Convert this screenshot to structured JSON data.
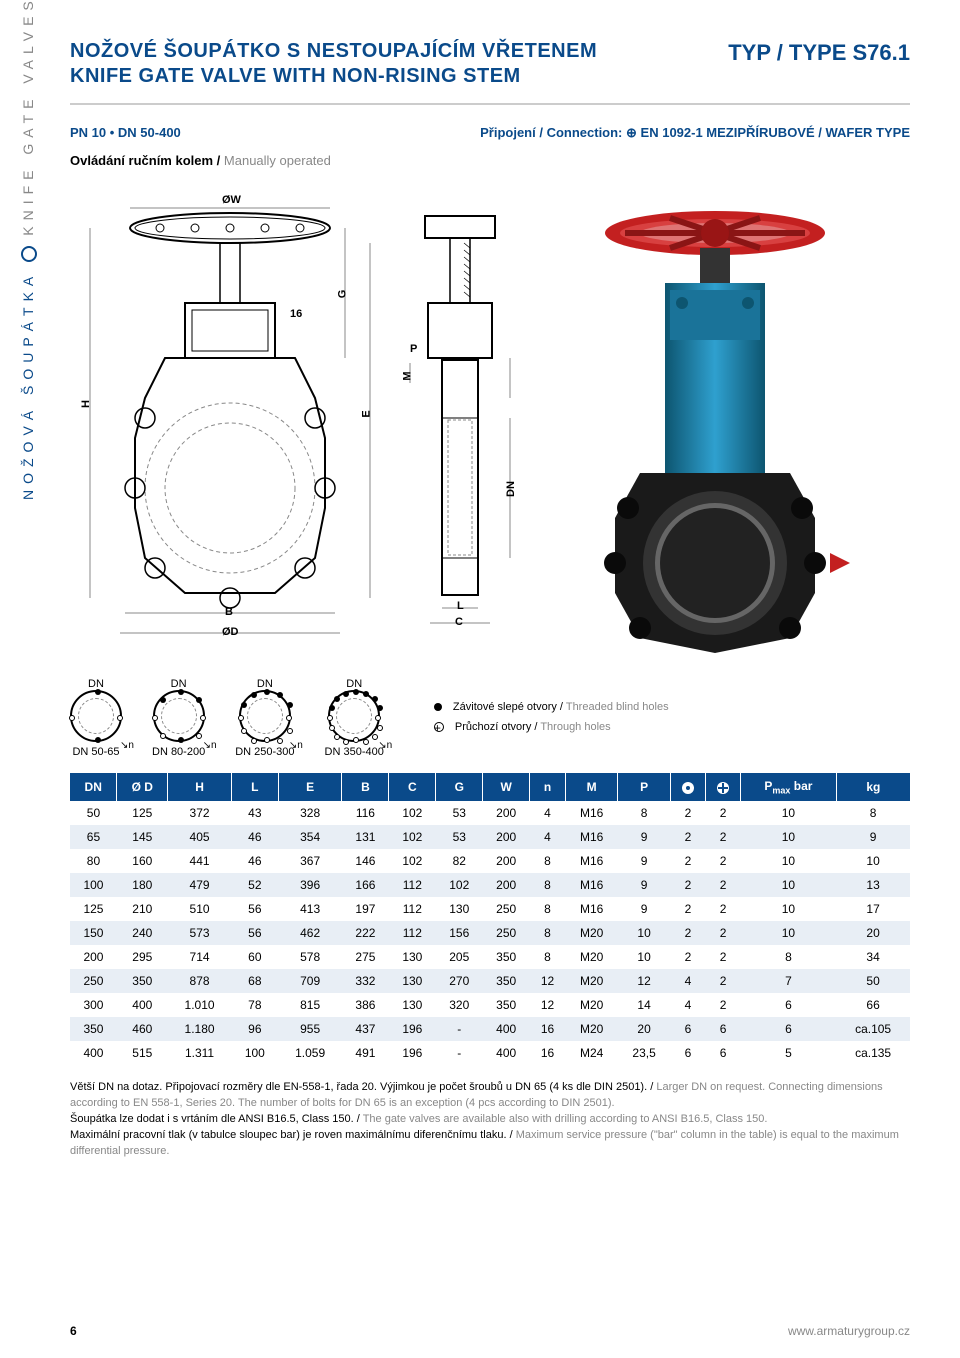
{
  "title": {
    "cz": "NOŽOVÉ ŠOUPÁTKO S NESTOUPAJÍCÍM VŘETENEM",
    "en": "KNIFE GATE VALVE WITH NON-RISING STEM",
    "type_label": "TYP / TYPE S76.1"
  },
  "spec": {
    "pn_dn": "PN 10 • DN 50-400",
    "connection_label": "Připojení / Connection:",
    "connection_value": "EN 1092-1 MEZIPŘÍRUBOVÉ / WAFER TYPE"
  },
  "operated": {
    "cz": "Ovládání ručním kolem /",
    "en": "Manually operated"
  },
  "sidebar": {
    "cz": "NOŽOVÁ ŠOUPÁTKA",
    "en": "KNIFE GATE VALVES"
  },
  "dim_labels": {
    "ow": "ØW",
    "g": "G",
    "sixteen": "16",
    "h": "H",
    "e": "E",
    "b": "B",
    "p": "P",
    "m": "M",
    "dn": "DN",
    "l": "L",
    "od": "ØD",
    "c": "C"
  },
  "photo_colors": {
    "wheel": "#c32020",
    "body": "#1e8ab5",
    "flange": "#1a1a1a"
  },
  "flanges": [
    {
      "dn": "DN",
      "range": "DN 50-65",
      "holes": 4
    },
    {
      "dn": "DN",
      "range": "DN 80-200",
      "holes": 8
    },
    {
      "dn": "DN",
      "range": "DN 250-300",
      "holes": 12
    },
    {
      "dn": "DN",
      "range": "DN 350-400",
      "holes": 16
    }
  ],
  "legend": {
    "blind_cz": "Závitové slepé otvory /",
    "blind_en": "Threaded blind holes",
    "through_cz": "Průchozí otvory /",
    "through_en": "Through holes"
  },
  "table": {
    "headers": [
      "DN",
      "Ø D",
      "H",
      "L",
      "E",
      "B",
      "C",
      "G",
      "W",
      "n",
      "M",
      "P",
      "●",
      "⊕",
      "Pmax bar",
      "kg"
    ],
    "rows": [
      [
        "50",
        "125",
        "372",
        "43",
        "328",
        "116",
        "102",
        "53",
        "200",
        "4",
        "M16",
        "8",
        "2",
        "2",
        "10",
        "8"
      ],
      [
        "65",
        "145",
        "405",
        "46",
        "354",
        "131",
        "102",
        "53",
        "200",
        "4",
        "M16",
        "9",
        "2",
        "2",
        "10",
        "9"
      ],
      [
        "80",
        "160",
        "441",
        "46",
        "367",
        "146",
        "102",
        "82",
        "200",
        "8",
        "M16",
        "9",
        "2",
        "2",
        "10",
        "10"
      ],
      [
        "100",
        "180",
        "479",
        "52",
        "396",
        "166",
        "112",
        "102",
        "200",
        "8",
        "M16",
        "9",
        "2",
        "2",
        "10",
        "13"
      ],
      [
        "125",
        "210",
        "510",
        "56",
        "413",
        "197",
        "112",
        "130",
        "250",
        "8",
        "M16",
        "9",
        "2",
        "2",
        "10",
        "17"
      ],
      [
        "150",
        "240",
        "573",
        "56",
        "462",
        "222",
        "112",
        "156",
        "250",
        "8",
        "M20",
        "10",
        "2",
        "2",
        "10",
        "20"
      ],
      [
        "200",
        "295",
        "714",
        "60",
        "578",
        "275",
        "130",
        "205",
        "350",
        "8",
        "M20",
        "10",
        "2",
        "2",
        "8",
        "34"
      ],
      [
        "250",
        "350",
        "878",
        "68",
        "709",
        "332",
        "130",
        "270",
        "350",
        "12",
        "M20",
        "12",
        "4",
        "2",
        "7",
        "50"
      ],
      [
        "300",
        "400",
        "1.010",
        "78",
        "815",
        "386",
        "130",
        "320",
        "350",
        "12",
        "M20",
        "14",
        "4",
        "2",
        "6",
        "66"
      ],
      [
        "350",
        "460",
        "1.180",
        "96",
        "955",
        "437",
        "196",
        "-",
        "400",
        "16",
        "M20",
        "20",
        "6",
        "6",
        "6",
        "ca.105"
      ],
      [
        "400",
        "515",
        "1.311",
        "100",
        "1.059",
        "491",
        "196",
        "-",
        "400",
        "16",
        "M24",
        "23,5",
        "6",
        "6",
        "5",
        "ca.135"
      ]
    ]
  },
  "notes": {
    "n1_cz": "Větší DN na dotaz. Připojovací rozměry dle EN-558-1, řada 20. Výjimkou je počet šroubů u DN 65 (4 ks dle DIN 2501). /",
    "n1_en": "Larger DN on request. Connecting dimensions according to EN 558-1, Series 20. The number of bolts for DN 65 is an exception (4 pcs according to DIN 2501).",
    "n2_cz": "Šoupátka lze dodat i s vrtáním dle ANSI B16.5, Class 150. /",
    "n2_en": "The gate valves are available also with drilling according to ANSI B16.5, Class 150.",
    "n3_cz": "Maximální pracovní tlak (v tabulce sloupec bar) je roven maximálnímu diferenčnímu tlaku. /",
    "n3_en": "Maximum service pressure (\"bar\" column in the table) is equal to the maximum differential pressure."
  },
  "footer": {
    "page": "6",
    "url": "www.armaturygroup.cz"
  }
}
